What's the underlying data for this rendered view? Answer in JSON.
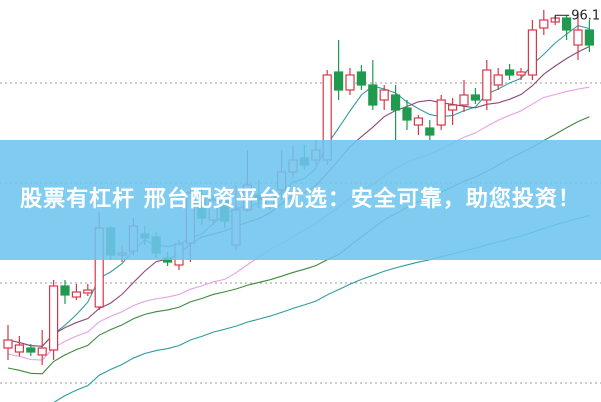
{
  "banner": {
    "text": "股票有杠杆 邢台配资平台优选：安全可靠，助您投资！"
  },
  "chart_data": {
    "type": "candlestick",
    "ylim": [
      0,
      100
    ],
    "grid": "dotted horizontal",
    "grid_values": [
      4.25,
      29.25,
      54.25,
      79.25
    ],
    "up_color": "#d8364a",
    "down_color": "#1f9a4e",
    "annotation": {
      "label": "96.18",
      "index": 48,
      "value": 96.18
    },
    "candles": [
      [
        13,
        15,
        18.75,
        10
      ],
      [
        12,
        13.75,
        16,
        11
      ],
      [
        13,
        12,
        14,
        11
      ],
      [
        11.25,
        13,
        17.5,
        8.75
      ],
      [
        12.5,
        28.5,
        30,
        10
      ],
      [
        28.5,
        26.25,
        30,
        24
      ],
      [
        25.75,
        27,
        29,
        25
      ],
      [
        26.75,
        27.5,
        29,
        26
      ],
      [
        23.25,
        43,
        47,
        22.5
      ],
      [
        43,
        36.25,
        43.5,
        35
      ],
      [
        36.5,
        36.75,
        38.75,
        34.5
      ],
      [
        37.25,
        43.5,
        45.5,
        36.25
      ],
      [
        41.5,
        40.5,
        43.5,
        38.75
      ],
      [
        40.75,
        36.75,
        42,
        35.5
      ],
      [
        35.5,
        34.5,
        37,
        33.5
      ],
      [
        33.75,
        39,
        40,
        32.5
      ],
      [
        39.25,
        51.75,
        53,
        34.5
      ],
      [
        51.25,
        45.5,
        52.5,
        43.75
      ],
      [
        45,
        50,
        51.25,
        43.75
      ],
      [
        49.75,
        44.75,
        50.5,
        43
      ],
      [
        38.75,
        47.5,
        53.75,
        37.5
      ],
      [
        47.5,
        53.75,
        62.5,
        47
      ],
      [
        51.25,
        50,
        55,
        48
      ],
      [
        48.75,
        51.25,
        52.5,
        47.5
      ],
      [
        52.5,
        57,
        62.5,
        50
      ],
      [
        57,
        60,
        63.75,
        55.5
      ],
      [
        60.5,
        58.75,
        63.75,
        57.5
      ],
      [
        60,
        62.5,
        65,
        58.75
      ],
      [
        60,
        81.25,
        82.5,
        58.75
      ],
      [
        82,
        77.5,
        90,
        75
      ],
      [
        77.5,
        81.25,
        83,
        76.25
      ],
      [
        82,
        78.75,
        83.75,
        77.5
      ],
      [
        78.75,
        73.75,
        85,
        72.5
      ],
      [
        75,
        77.5,
        78.75,
        72.5
      ],
      [
        76.25,
        72.5,
        78.75,
        65
      ],
      [
        73,
        70,
        75,
        67.5
      ],
      [
        68.75,
        70.5,
        71.25,
        66.25
      ],
      [
        68,
        66.25,
        70,
        65
      ],
      [
        68.75,
        75,
        76.25,
        67.5
      ],
      [
        72.5,
        73.75,
        75.5,
        68.75
      ],
      [
        73.75,
        76.25,
        80,
        72
      ],
      [
        76.25,
        75,
        78,
        74
      ],
      [
        75,
        82.5,
        85,
        72.5
      ],
      [
        78.75,
        81.25,
        83,
        77.5
      ],
      [
        82.5,
        81.25,
        84,
        80
      ],
      [
        81.25,
        82,
        83,
        80
      ],
      [
        81.25,
        92.5,
        95,
        80
      ],
      [
        93,
        95,
        97.5,
        91.25
      ],
      [
        94.5,
        95.5,
        96.18,
        93.75
      ],
      [
        95.5,
        92.5,
        96.25,
        90
      ],
      [
        88.75,
        92.5,
        96.25,
        85
      ],
      [
        92.5,
        88.75,
        95,
        87
      ]
    ],
    "moving_averages": [
      {
        "window": 5,
        "color": "#3a9a9a"
      },
      {
        "window": 10,
        "color": "#8a4a7a"
      },
      {
        "window": 20,
        "color": "#e6a0e6"
      },
      {
        "window": 30,
        "color": "#3f8a3f"
      },
      {
        "window": 60,
        "color": "#2f9aa0"
      }
    ]
  }
}
